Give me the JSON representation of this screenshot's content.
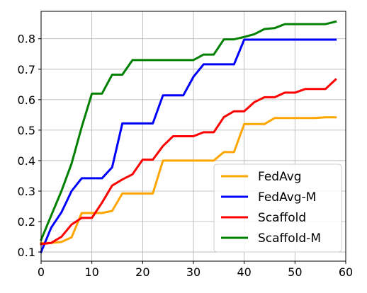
{
  "chart_data": {
    "type": "line",
    "title": "",
    "xlabel": "",
    "ylabel": "",
    "xlim": [
      0,
      60
    ],
    "ylim": [
      0.07,
      0.89
    ],
    "xticks": [
      0,
      10,
      20,
      30,
      40,
      50,
      60
    ],
    "yticks": [
      0.1,
      0.2,
      0.3,
      0.4,
      0.5,
      0.6,
      0.7,
      0.8
    ],
    "grid": true,
    "legend_position": "bottom-right",
    "series": [
      {
        "name": "FedAvg",
        "color": "#ffa500",
        "points": [
          [
            0,
            0.13
          ],
          [
            2,
            0.13
          ],
          [
            4,
            0.133
          ],
          [
            6,
            0.148
          ],
          [
            8,
            0.228
          ],
          [
            10,
            0.228
          ],
          [
            12,
            0.228
          ],
          [
            14,
            0.235
          ],
          [
            16,
            0.292
          ],
          [
            18,
            0.292
          ],
          [
            20,
            0.292
          ],
          [
            22,
            0.292
          ],
          [
            24,
            0.4
          ],
          [
            26,
            0.4
          ],
          [
            28,
            0.4
          ],
          [
            30,
            0.4
          ],
          [
            32,
            0.4
          ],
          [
            34,
            0.4
          ],
          [
            36,
            0.428
          ],
          [
            38,
            0.428
          ],
          [
            40,
            0.52
          ],
          [
            42,
            0.52
          ],
          [
            44,
            0.52
          ],
          [
            46,
            0.54
          ],
          [
            48,
            0.54
          ],
          [
            50,
            0.54
          ],
          [
            52,
            0.54
          ],
          [
            54,
            0.54
          ],
          [
            56,
            0.542
          ],
          [
            58,
            0.542
          ]
        ]
      },
      {
        "name": "FedAvg-M",
        "color": "#0000ff",
        "points": [
          [
            0,
            0.1
          ],
          [
            2,
            0.18
          ],
          [
            4,
            0.23
          ],
          [
            6,
            0.3
          ],
          [
            8,
            0.342
          ],
          [
            10,
            0.342
          ],
          [
            12,
            0.342
          ],
          [
            14,
            0.378
          ],
          [
            16,
            0.522
          ],
          [
            18,
            0.522
          ],
          [
            20,
            0.522
          ],
          [
            22,
            0.522
          ],
          [
            24,
            0.614
          ],
          [
            26,
            0.614
          ],
          [
            28,
            0.614
          ],
          [
            30,
            0.675
          ],
          [
            32,
            0.716
          ],
          [
            34,
            0.716
          ],
          [
            36,
            0.716
          ],
          [
            38,
            0.716
          ],
          [
            40,
            0.797
          ],
          [
            42,
            0.797
          ],
          [
            44,
            0.797
          ],
          [
            46,
            0.797
          ],
          [
            48,
            0.797
          ],
          [
            50,
            0.797
          ],
          [
            52,
            0.797
          ],
          [
            54,
            0.797
          ],
          [
            56,
            0.797
          ],
          [
            58,
            0.797
          ]
        ]
      },
      {
        "name": "Scaffold",
        "color": "#ff0000",
        "points": [
          [
            0,
            0.126
          ],
          [
            2,
            0.13
          ],
          [
            4,
            0.15
          ],
          [
            6,
            0.19
          ],
          [
            8,
            0.212
          ],
          [
            10,
            0.212
          ],
          [
            12,
            0.262
          ],
          [
            14,
            0.318
          ],
          [
            16,
            0.338
          ],
          [
            18,
            0.355
          ],
          [
            20,
            0.403
          ],
          [
            22,
            0.403
          ],
          [
            24,
            0.448
          ],
          [
            26,
            0.48
          ],
          [
            28,
            0.48
          ],
          [
            30,
            0.48
          ],
          [
            32,
            0.493
          ],
          [
            34,
            0.493
          ],
          [
            36,
            0.543
          ],
          [
            38,
            0.562
          ],
          [
            40,
            0.562
          ],
          [
            42,
            0.592
          ],
          [
            44,
            0.608
          ],
          [
            46,
            0.608
          ],
          [
            48,
            0.623
          ],
          [
            50,
            0.623
          ],
          [
            52,
            0.635
          ],
          [
            54,
            0.635
          ],
          [
            56,
            0.635
          ],
          [
            58,
            0.666
          ]
        ]
      },
      {
        "name": "Scaffold-M",
        "color": "#008000",
        "points": [
          [
            0,
            0.14
          ],
          [
            2,
            0.22
          ],
          [
            4,
            0.3
          ],
          [
            6,
            0.39
          ],
          [
            8,
            0.51
          ],
          [
            10,
            0.62
          ],
          [
            12,
            0.62
          ],
          [
            14,
            0.682
          ],
          [
            16,
            0.682
          ],
          [
            18,
            0.73
          ],
          [
            20,
            0.73
          ],
          [
            22,
            0.73
          ],
          [
            24,
            0.73
          ],
          [
            26,
            0.73
          ],
          [
            28,
            0.73
          ],
          [
            30,
            0.73
          ],
          [
            32,
            0.748
          ],
          [
            34,
            0.748
          ],
          [
            36,
            0.798
          ],
          [
            38,
            0.798
          ],
          [
            40,
            0.806
          ],
          [
            42,
            0.815
          ],
          [
            44,
            0.832
          ],
          [
            46,
            0.835
          ],
          [
            48,
            0.848
          ],
          [
            50,
            0.848
          ],
          [
            52,
            0.848
          ],
          [
            54,
            0.848
          ],
          [
            56,
            0.848
          ],
          [
            58,
            0.856
          ]
        ]
      }
    ]
  }
}
